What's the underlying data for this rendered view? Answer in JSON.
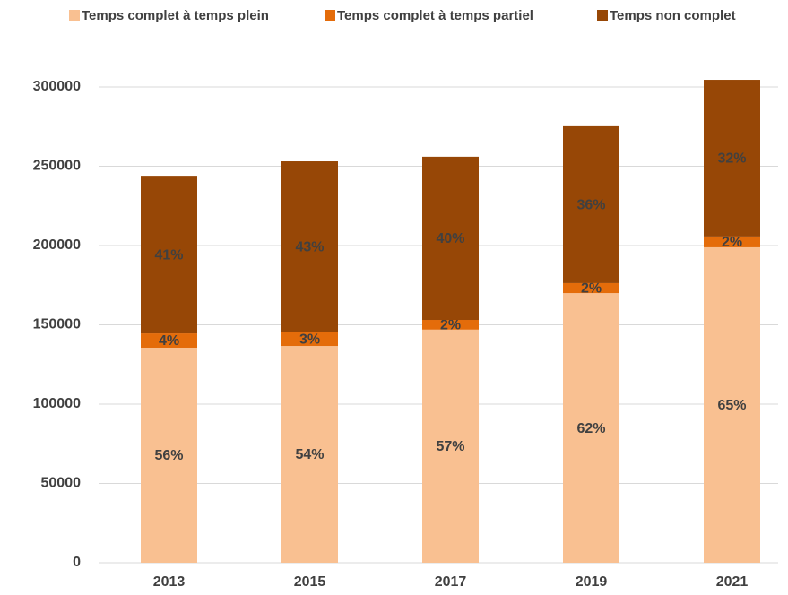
{
  "chart_data": {
    "type": "stacked_bar",
    "categories": [
      "2013",
      "2015",
      "2017",
      "2019",
      "2021"
    ],
    "series": [
      {
        "name": "Temps complet à temps plein",
        "color": "#f9c091",
        "values": [
          135600,
          136700,
          147000,
          170000,
          198900
        ],
        "value_labels": [
          "56%",
          "54%",
          "57%",
          "62%",
          "65%"
        ]
      },
      {
        "name": "Temps complet à temps partiel",
        "color": "#e46c0a",
        "values": [
          9000,
          8500,
          6100,
          6300,
          6800
        ],
        "value_labels": [
          "4%",
          "3%",
          "2%",
          "2%",
          "2%"
        ]
      },
      {
        "name": "Temps non complet",
        "color": "#974706",
        "values": [
          99400,
          107900,
          102900,
          98900,
          98800
        ],
        "value_labels": [
          "41%",
          "43%",
          "40%",
          "36%",
          "32%"
        ]
      }
    ],
    "ylim": [
      0,
      300000
    ],
    "yticks": [
      0,
      50000,
      100000,
      150000,
      200000,
      250000,
      300000
    ],
    "grid": true,
    "legend": "top"
  }
}
